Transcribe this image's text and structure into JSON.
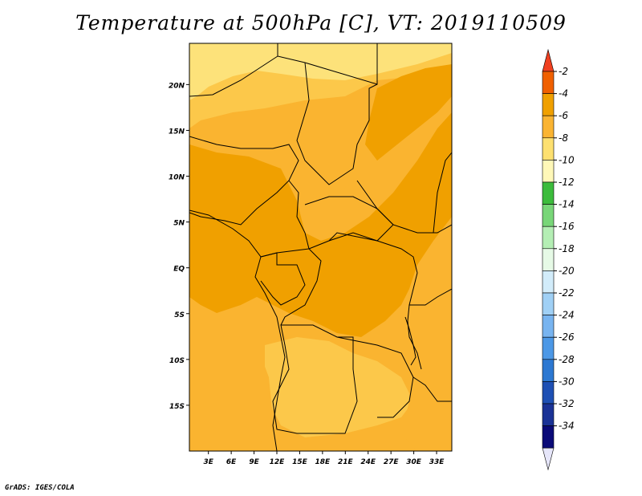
{
  "title": "Temperature at 500hPa [C], VT: 2019110509",
  "credit": "GrADS: IGES/COLA",
  "map": {
    "region": "Central Africa",
    "lat_labels": [
      "20N",
      "15N",
      "10N",
      "5N",
      "EQ",
      "5S",
      "10S",
      "15S"
    ],
    "lat_values": [
      20,
      15,
      10,
      5,
      0,
      -5,
      -10,
      -15
    ],
    "lon_labels": [
      "3E",
      "6E",
      "9E",
      "12E",
      "15E",
      "18E",
      "21E",
      "24E",
      "27E",
      "30E",
      "33E"
    ],
    "lon_values": [
      3,
      6,
      9,
      12,
      15,
      18,
      21,
      24,
      27,
      30,
      33
    ],
    "lat_range": [
      -20,
      24.5
    ],
    "lon_range": [
      0.5,
      35
    ],
    "field_colors": {
      "warm_core": "#f0a000",
      "mid": "#fab430",
      "cool": "#fcc84a",
      "coolest": "#fde27a"
    }
  },
  "colorbar": {
    "labels": [
      "-2",
      "-4",
      "-6",
      "-8",
      "-10",
      "-12",
      "-14",
      "-16",
      "-18",
      "-20",
      "-22",
      "-24",
      "-26",
      "-28",
      "-30",
      "-32",
      "-34"
    ],
    "colors": [
      "#f04020",
      "#f06000",
      "#f0a000",
      "#fab432",
      "#fde070",
      "#fff8b8",
      "#3cbc3c",
      "#78d678",
      "#b4eeb4",
      "#e6fae6",
      "#d2ecfa",
      "#a0d0f5",
      "#78b4f0",
      "#4c98e6",
      "#2c78d2",
      "#1e50b4",
      "#1a3296",
      "#0a0a78",
      "#e6e6fa"
    ]
  }
}
